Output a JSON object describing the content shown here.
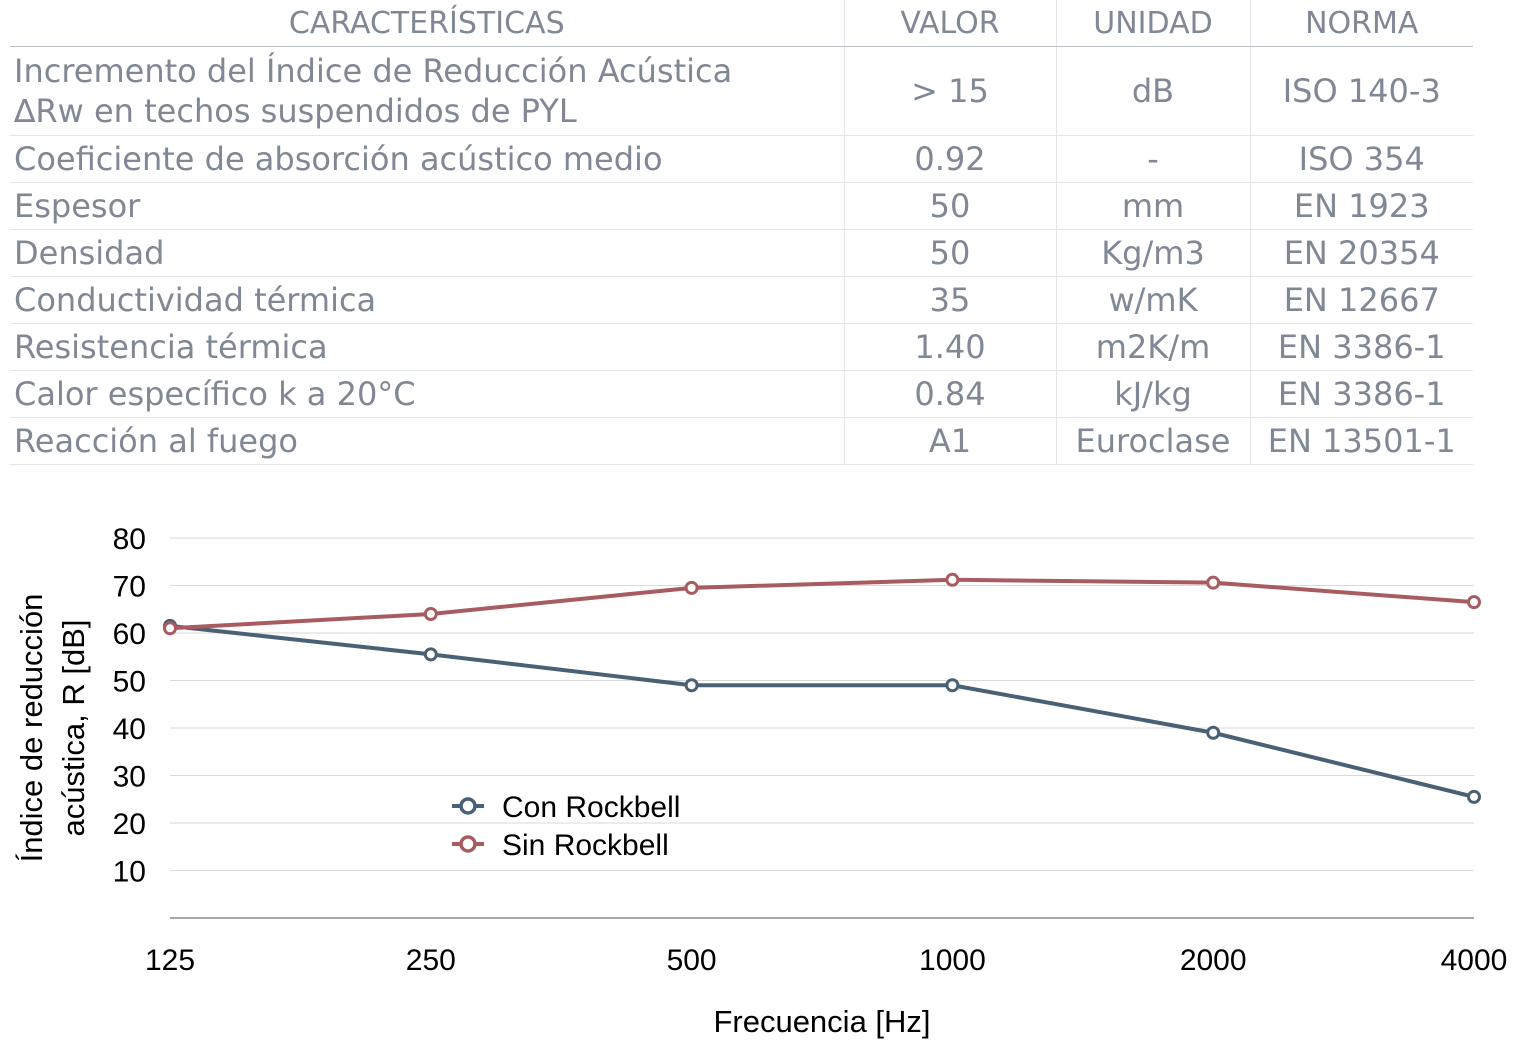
{
  "table": {
    "headers": [
      "CARACTERÍSTICAS",
      "VALOR",
      "UNIDAD",
      "NORMA"
    ],
    "rows": [
      {
        "c": "Incremento del Índice de Reducción Acústica\n∆Rw en techos suspendidos de PYL",
        "v": "> 15",
        "u": "dB",
        "n": "ISO 140-3"
      },
      {
        "c": "Coeficiente de absorción acústico medio",
        "v": "0.92",
        "u": "-",
        "n": "ISO 354"
      },
      {
        "c": "Espesor",
        "v": "50",
        "u": "mm",
        "n": "EN 1923"
      },
      {
        "c": "Densidad",
        "v": "50",
        "u": "Kg/m3",
        "n": "EN 20354"
      },
      {
        "c": "Conductividad térmica",
        "v": "35",
        "u": "w/mK",
        "n": "EN 12667"
      },
      {
        "c": "Resistencia térmica",
        "v": "1.40",
        "u": "m2K/m",
        "n": "EN 3386-1"
      },
      {
        "c": "Calor específico k a 20°C",
        "v": "0.84",
        "u": "kJ/kg",
        "n": "EN 3386-1"
      },
      {
        "c": "Reacción al fuego",
        "v": "A1",
        "u": "Euroclase",
        "n": "EN 13501-1"
      }
    ]
  },
  "colors": {
    "con": "#4a6175",
    "sin": "#a85c5f",
    "grid": "#d9d9d9",
    "table_text": "#7f8894"
  },
  "chart_data": {
    "type": "line",
    "categories": [
      "125",
      "250",
      "500",
      "1000",
      "2000",
      "4000"
    ],
    "series": [
      {
        "name": "Con Rockbell",
        "values": [
          61.5,
          55.5,
          49,
          49,
          39,
          25.5
        ]
      },
      {
        "name": "Sin Rockbell",
        "values": [
          61,
          64,
          69.5,
          71.2,
          70.6,
          66.5
        ]
      }
    ],
    "y_ticks": [
      10,
      20,
      30,
      40,
      50,
      60,
      70,
      80
    ],
    "ylim": [
      0,
      80
    ],
    "xlabel": "Frecuencia [Hz]",
    "ylabel": "Índice de reducción\nacústica, R [dB]",
    "grid": true,
    "legend_position": "center-left"
  }
}
